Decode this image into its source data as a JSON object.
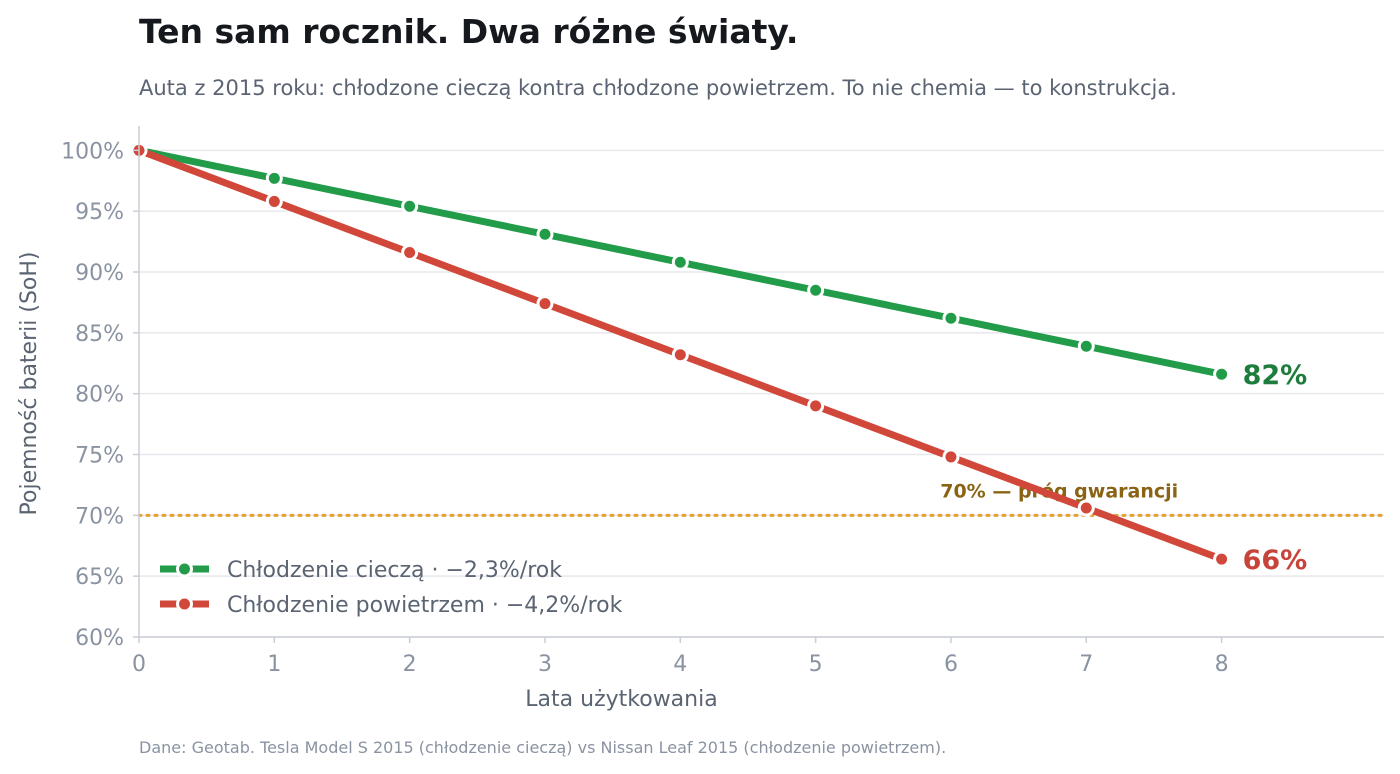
{
  "title": "Ten sam rocznik. Dwa różne światy.",
  "subtitle": "Auta z 2015 roku: chłodzone cieczą kontra chłodzone powietrzem. To nie chemia — to konstrukcja.",
  "source": "Dane: Geotab. Tesla Model S 2015 (chłodzenie cieczą) vs Nissan Leaf 2015 (chłodzenie powietrzem).",
  "chart_data": {
    "type": "line",
    "xlabel": "Lata użytkowania",
    "ylabel": "Pojemność baterii (SoH)",
    "x": [
      0,
      1,
      2,
      3,
      4,
      5,
      6,
      7,
      8
    ],
    "xlim": [
      0,
      9.2
    ],
    "ylim": [
      60,
      102
    ],
    "x_ticks": [
      "0",
      "1",
      "2",
      "3",
      "4",
      "5",
      "6",
      "7",
      "8"
    ],
    "y_ticks": [
      "60%",
      "65%",
      "70%",
      "75%",
      "80%",
      "85%",
      "90%",
      "95%",
      "100%"
    ],
    "grid": "horizontal",
    "legend_position": "bottom-left",
    "series": [
      {
        "name": "Chłodzenie cieczą",
        "rate": "−2,3%/rok",
        "color": "#239c4a",
        "label_color": "#1e7d3d",
        "end_label": "82%",
        "values": [
          100,
          97.7,
          95.4,
          93.1,
          90.8,
          88.5,
          86.2,
          83.9,
          81.6
        ]
      },
      {
        "name": "Chłodzenie powietrzem",
        "rate": "−4,2%/rok",
        "color": "#d1473a",
        "label_color": "#c7443a",
        "end_label": "66%",
        "values": [
          100,
          95.8,
          91.6,
          87.4,
          83.2,
          79.0,
          74.8,
          70.6,
          66.4
        ]
      }
    ],
    "threshold": {
      "value": 70,
      "label": "70% — próg gwarancji",
      "color": "#e5a12f",
      "label_color": "#8a6414"
    }
  }
}
